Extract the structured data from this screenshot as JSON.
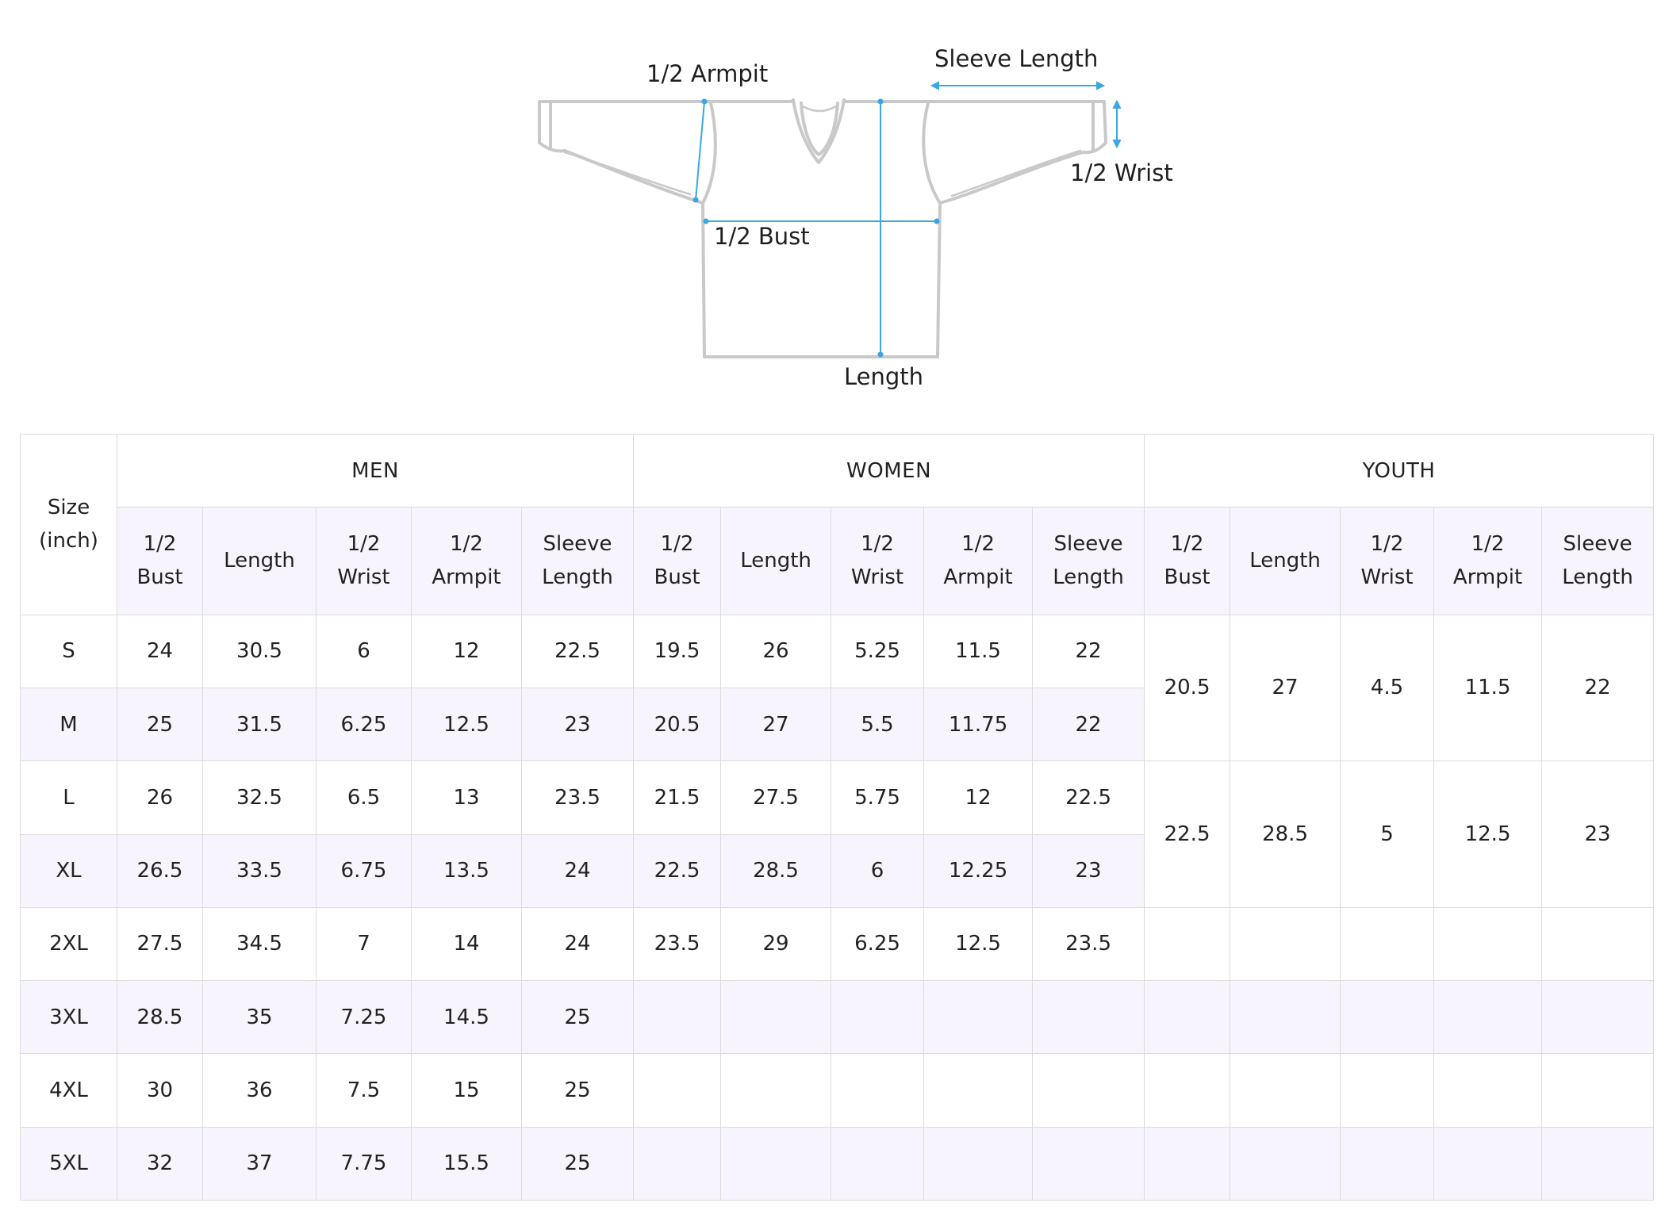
{
  "diagram": {
    "labels": {
      "armpit": "1/2 Armpit",
      "sleeve": "Sleeve Length",
      "wrist": "1/2 Wrist",
      "bust": "1/2 Bust",
      "length": "Length"
    }
  },
  "table": {
    "size_header_line1": "Size",
    "size_header_line2": "(inch)",
    "groups": {
      "men": "MEN",
      "women": "WOMEN",
      "youth": "YOUTH"
    },
    "columns": {
      "bust_1": "1/2",
      "bust_2": "Bust",
      "length": "Length",
      "wrist_1": "1/2",
      "wrist_2": "Wrist",
      "armpit_1": "1/2",
      "armpit_2": "Armpit",
      "sleeve_1": "Sleeve",
      "sleeve_2": "Length"
    },
    "rows": [
      {
        "size": "S",
        "men": [
          "24",
          "30.5",
          "6",
          "12",
          "22.5"
        ],
        "women": [
          "19.5",
          "26",
          "5.25",
          "11.5",
          "22"
        ]
      },
      {
        "size": "M",
        "men": [
          "25",
          "31.5",
          "6.25",
          "12.5",
          "23"
        ],
        "women": [
          "20.5",
          "27",
          "5.5",
          "11.75",
          "22"
        ]
      },
      {
        "size": "L",
        "men": [
          "26",
          "32.5",
          "6.5",
          "13",
          "23.5"
        ],
        "women": [
          "21.5",
          "27.5",
          "5.75",
          "12",
          "22.5"
        ]
      },
      {
        "size": "XL",
        "men": [
          "26.5",
          "33.5",
          "6.75",
          "13.5",
          "24"
        ],
        "women": [
          "22.5",
          "28.5",
          "6",
          "12.25",
          "23"
        ]
      },
      {
        "size": "2XL",
        "men": [
          "27.5",
          "34.5",
          "7",
          "14",
          "24"
        ],
        "women": [
          "23.5",
          "29",
          "6.25",
          "12.5",
          "23.5"
        ]
      },
      {
        "size": "3XL",
        "men": [
          "28.5",
          "35",
          "7.25",
          "14.5",
          "25"
        ],
        "women": [
          "",
          "",
          "",
          "",
          ""
        ]
      },
      {
        "size": "4XL",
        "men": [
          "30",
          "36",
          "7.5",
          "15",
          "25"
        ],
        "women": [
          "",
          "",
          "",
          "",
          ""
        ]
      },
      {
        "size": "5XL",
        "men": [
          "32",
          "37",
          "7.75",
          "15.5",
          "25"
        ],
        "women": [
          "",
          "",
          "",
          "",
          ""
        ]
      }
    ],
    "youth": [
      [
        "20.5",
        "27",
        "4.5",
        "11.5",
        "22"
      ],
      [
        "22.5",
        "28.5",
        "5",
        "12.5",
        "23"
      ]
    ]
  }
}
